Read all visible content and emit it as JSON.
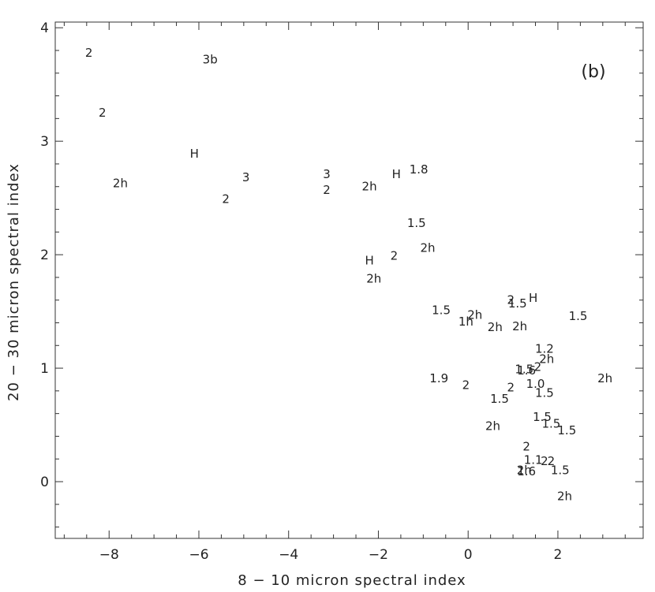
{
  "chart_data": {
    "type": "scatter",
    "panel_label": "(b)",
    "xlabel": "8 − 10 micron spectral index",
    "ylabel": "20 − 30 micron spectral index",
    "xlim": [
      -9.2,
      3.9
    ],
    "ylim": [
      -0.5,
      4.05
    ],
    "x_ticks": [
      -8,
      -6,
      -4,
      -2,
      0,
      2
    ],
    "x_tick_labels": [
      "−8",
      "−6",
      "−4",
      "−2",
      "0",
      "2"
    ],
    "y_ticks": [
      0,
      1,
      2,
      3,
      4
    ],
    "y_tick_labels": [
      "0",
      "1",
      "2",
      "3",
      "4"
    ],
    "grid": false,
    "points": [
      {
        "x": -8.45,
        "y": 3.78,
        "label": "2"
      },
      {
        "x": -8.15,
        "y": 3.25,
        "label": "2"
      },
      {
        "x": -5.75,
        "y": 3.72,
        "label": "3b"
      },
      {
        "x": -6.1,
        "y": 2.89,
        "label": "H"
      },
      {
        "x": -7.75,
        "y": 2.63,
        "label": "2h"
      },
      {
        "x": -4.95,
        "y": 2.68,
        "label": "3"
      },
      {
        "x": -5.4,
        "y": 2.49,
        "label": "2"
      },
      {
        "x": -3.15,
        "y": 2.71,
        "label": "3"
      },
      {
        "x": -3.15,
        "y": 2.57,
        "label": "2"
      },
      {
        "x": -2.2,
        "y": 2.6,
        "label": "2h"
      },
      {
        "x": -1.6,
        "y": 2.71,
        "label": "H"
      },
      {
        "x": -1.1,
        "y": 2.75,
        "label": "1.8"
      },
      {
        "x": -1.15,
        "y": 2.28,
        "label": "1.5"
      },
      {
        "x": -0.9,
        "y": 2.06,
        "label": "2h"
      },
      {
        "x": -1.65,
        "y": 1.99,
        "label": "2"
      },
      {
        "x": -2.2,
        "y": 1.95,
        "label": "H"
      },
      {
        "x": -2.1,
        "y": 1.79,
        "label": "2h"
      },
      {
        "x": -0.6,
        "y": 1.51,
        "label": "1.5"
      },
      {
        "x": -0.05,
        "y": 1.41,
        "label": "1h"
      },
      {
        "x": 0.15,
        "y": 1.47,
        "label": "2h"
      },
      {
        "x": 0.6,
        "y": 1.36,
        "label": "2h"
      },
      {
        "x": 0.95,
        "y": 1.6,
        "label": "2"
      },
      {
        "x": 1.1,
        "y": 1.57,
        "label": "1.5"
      },
      {
        "x": 1.45,
        "y": 1.62,
        "label": "H"
      },
      {
        "x": 1.15,
        "y": 1.37,
        "label": "2h"
      },
      {
        "x": 2.45,
        "y": 1.46,
        "label": "1.5"
      },
      {
        "x": 1.7,
        "y": 1.17,
        "label": "1.2"
      },
      {
        "x": 1.75,
        "y": 1.08,
        "label": "2h"
      },
      {
        "x": 1.55,
        "y": 1.01,
        "label": "2"
      },
      {
        "x": 1.25,
        "y": 0.99,
        "label": "1.5"
      },
      {
        "x": 1.3,
        "y": 0.98,
        "label": "1.6"
      },
      {
        "x": 3.05,
        "y": 0.91,
        "label": "2h"
      },
      {
        "x": -0.65,
        "y": 0.91,
        "label": "1.9"
      },
      {
        "x": -0.05,
        "y": 0.85,
        "label": "2"
      },
      {
        "x": 1.5,
        "y": 0.86,
        "label": "1.0"
      },
      {
        "x": 0.95,
        "y": 0.83,
        "label": "2"
      },
      {
        "x": 1.7,
        "y": 0.78,
        "label": "1.5"
      },
      {
        "x": 0.7,
        "y": 0.73,
        "label": "1.5"
      },
      {
        "x": 1.65,
        "y": 0.57,
        "label": "1.5"
      },
      {
        "x": 1.85,
        "y": 0.51,
        "label": "1.5"
      },
      {
        "x": 2.2,
        "y": 0.45,
        "label": "1.5"
      },
      {
        "x": 0.55,
        "y": 0.49,
        "label": "2h"
      },
      {
        "x": 1.3,
        "y": 0.31,
        "label": "2"
      },
      {
        "x": 1.45,
        "y": 0.19,
        "label": "1.1"
      },
      {
        "x": 1.7,
        "y": 0.18,
        "label": "2"
      },
      {
        "x": 1.85,
        "y": 0.18,
        "label": "2"
      },
      {
        "x": 1.25,
        "y": 0.1,
        "label": "2h"
      },
      {
        "x": 1.3,
        "y": 0.09,
        "label": "1.6"
      },
      {
        "x": 2.05,
        "y": 0.1,
        "label": "1.5"
      },
      {
        "x": 2.15,
        "y": -0.13,
        "label": "2h"
      }
    ]
  }
}
